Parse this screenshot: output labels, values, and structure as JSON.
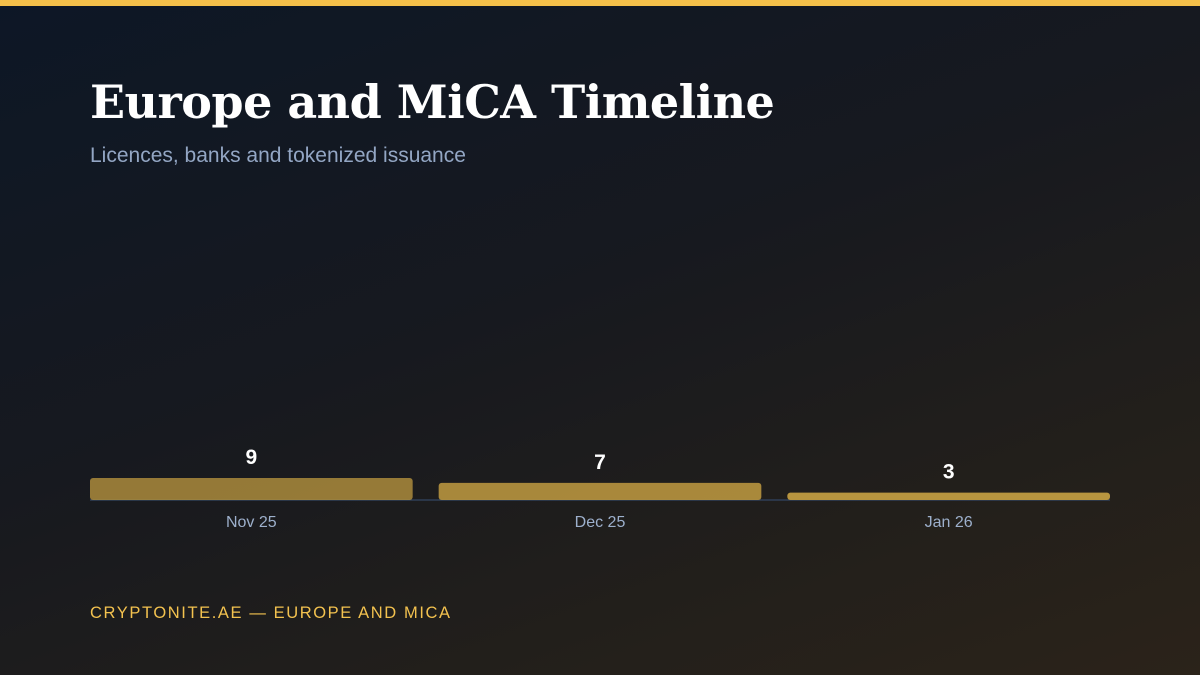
{
  "header": {
    "title": "Europe and MiCA Timeline",
    "subtitle": "Licences, banks and tokenized issuance"
  },
  "footer": {
    "text": "CRYPTONITE.AE — EUROPE AND MICA"
  },
  "colors": {
    "accent": "#f5c04a",
    "bar": "#b8953f",
    "axis": "#2f3f57",
    "footer_text": "#f3c24f"
  },
  "chart_data": {
    "type": "bar",
    "title": "Europe and MiCA Timeline",
    "subtitle": "Licences, banks and tokenized issuance",
    "categories": [
      "Nov 25",
      "Dec 25",
      "Jan 26"
    ],
    "values": [
      9,
      7,
      3
    ],
    "data_labels": [
      "9",
      "7",
      "3"
    ],
    "ylim": [
      0,
      9
    ],
    "grid": false,
    "legend": "none"
  }
}
